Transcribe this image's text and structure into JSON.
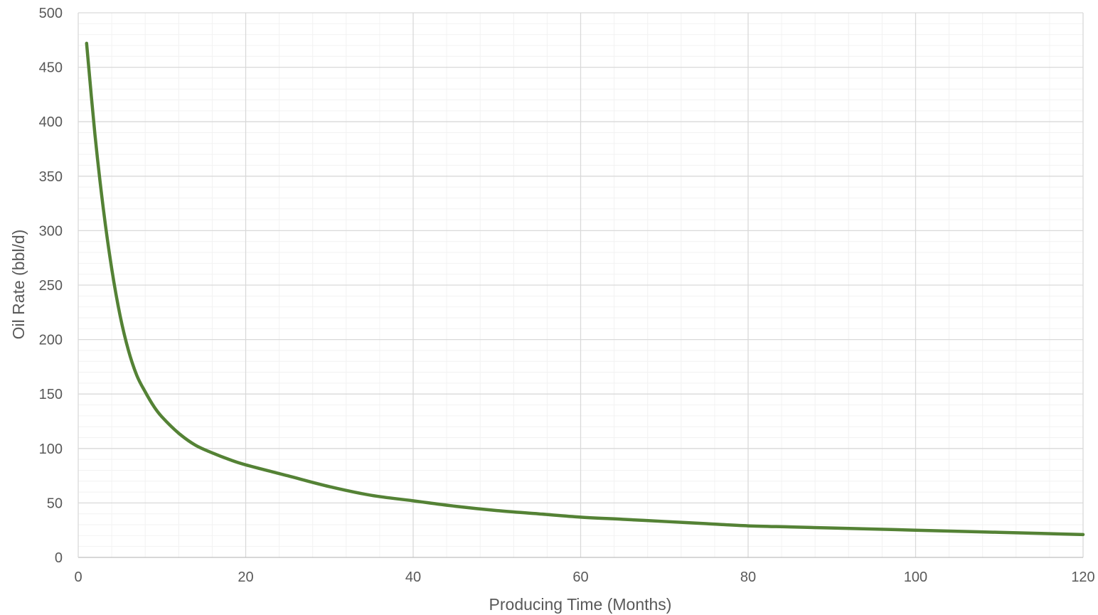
{
  "chart_data": {
    "type": "line",
    "title": "",
    "xlabel": "Producing Time (Months)",
    "ylabel": "Oil Rate (bbl/d)",
    "xlim": [
      0,
      120
    ],
    "ylim": [
      0,
      500
    ],
    "x_ticks": [
      "0",
      "20",
      "40",
      "60",
      "80",
      "100",
      "120"
    ],
    "y_ticks": [
      "0",
      "50",
      "100",
      "150",
      "200",
      "250",
      "300",
      "350",
      "400",
      "450",
      "500"
    ],
    "grid": {
      "major": true,
      "minor": true,
      "x_minor_step": 4,
      "y_minor_step": 10
    },
    "legend": "none",
    "colors": {
      "line": "#548235",
      "major_grid": "#d9d9d9",
      "minor_grid": "#f2f2f2",
      "axis": "#bfbfbf",
      "text": "#595959"
    },
    "series": [
      {
        "color": "#548235",
        "x": [
          1,
          2,
          3,
          4,
          5,
          6,
          7,
          8,
          9,
          10,
          12,
          14,
          16,
          18,
          20,
          25,
          30,
          35,
          40,
          45,
          50,
          55,
          60,
          65,
          70,
          75,
          80,
          85,
          90,
          95,
          100,
          105,
          110,
          115,
          120
        ],
        "y": [
          472,
          388,
          320,
          265,
          222,
          190,
          167,
          152,
          139,
          129,
          114,
          103,
          96,
          90,
          85,
          75,
          65,
          57,
          52,
          47,
          43,
          40,
          37,
          35,
          33,
          31,
          29,
          28,
          27,
          26,
          25,
          24,
          23,
          22,
          21
        ]
      }
    ]
  }
}
